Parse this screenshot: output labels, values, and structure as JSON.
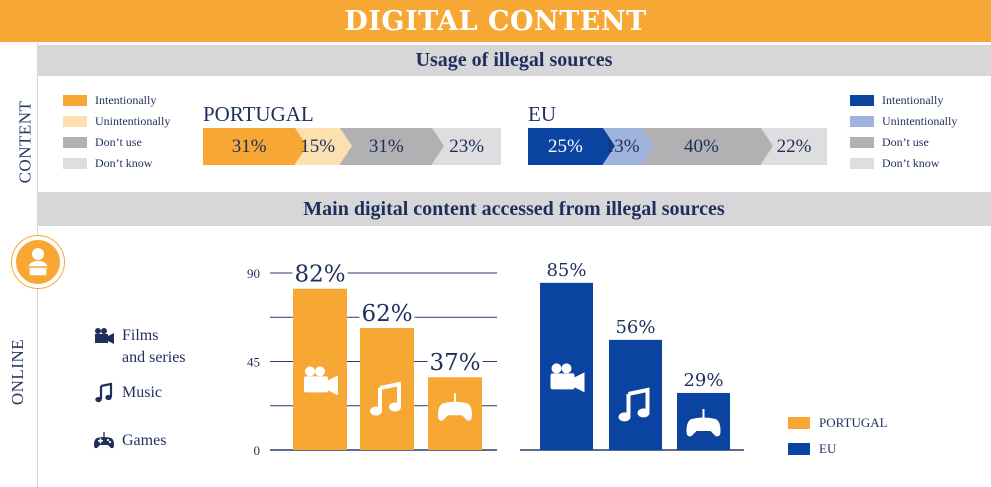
{
  "header": {
    "title": "DIGITAL CONTENT"
  },
  "side_labels": {
    "content": "CONTENT",
    "online": "ONLINE"
  },
  "section1": {
    "title": "Usage of illegal sources"
  },
  "section2": {
    "title": "Main digital content accessed from illegal sources"
  },
  "colors": {
    "orange": "#f7a733",
    "orange_light": "#fde0b0",
    "grey_mid": "#b1b1b3",
    "grey_light": "#dedee0",
    "blue": "#0b43a0",
    "blue_light": "#9fb4dc",
    "text_navy": "#1f2f5c"
  },
  "legend_pt": [
    {
      "label": "Intentionally",
      "color": "#f7a733"
    },
    {
      "label": "Unintentionally",
      "color": "#fde0b0"
    },
    {
      "label": "Don’t use",
      "color": "#b1b1b3"
    },
    {
      "label": "Don’t know",
      "color": "#dedee0"
    }
  ],
  "legend_eu": [
    {
      "label": "Intentionally",
      "color": "#0b43a0"
    },
    {
      "label": "Unintentionally",
      "color": "#9fb4dc"
    },
    {
      "label": "Don’t use",
      "color": "#b1b1b3"
    },
    {
      "label": "Don’t know",
      "color": "#dedee0"
    }
  ],
  "usage": {
    "portugal": {
      "title": "PORTUGAL",
      "segments": [
        {
          "label": "31%",
          "value": 31,
          "color": "#f7a733"
        },
        {
          "label": "15%",
          "value": 15,
          "color": "#fde0b0"
        },
        {
          "label": "31%",
          "value": 31,
          "color": "#b1b1b3"
        },
        {
          "label": "23%",
          "value": 23,
          "color": "#dedee0"
        }
      ]
    },
    "eu": {
      "title": "EU",
      "segments": [
        {
          "label": "25%",
          "value": 25,
          "color": "#0b43a0",
          "text_color": "#ffffff"
        },
        {
          "label": "13%",
          "value": 13,
          "color": "#9fb4dc"
        },
        {
          "label": "40%",
          "value": 40,
          "color": "#b1b1b3"
        },
        {
          "label": "22%",
          "value": 22,
          "color": "#dedee0"
        }
      ]
    }
  },
  "content_legend": [
    {
      "icon": "camera-icon",
      "label_lines": [
        "Films",
        "and series"
      ]
    },
    {
      "icon": "music-note-icon",
      "label_lines": [
        "Music"
      ]
    },
    {
      "icon": "gamepad-icon",
      "label_lines": [
        "Games"
      ]
    }
  ],
  "country_legend": [
    {
      "label": "PORTUGAL",
      "color": "#f7a733"
    },
    {
      "label": "EU",
      "color": "#0b43a0"
    }
  ],
  "chart_data": {
    "type": "bar",
    "categories": [
      "Films and series",
      "Music",
      "Games"
    ],
    "series": [
      {
        "name": "PORTUGAL",
        "values": [
          82,
          62,
          37
        ],
        "labels": [
          "82%",
          "62%",
          "37%"
        ],
        "color": "#f7a733"
      },
      {
        "name": "EU",
        "values": [
          85,
          56,
          29
        ],
        "labels": [
          "85%",
          "56%",
          "29%"
        ],
        "color": "#0b43a0"
      }
    ],
    "ylim": [
      0,
      90
    ],
    "yticks": [
      "0",
      "45",
      "90"
    ],
    "grid": true
  }
}
